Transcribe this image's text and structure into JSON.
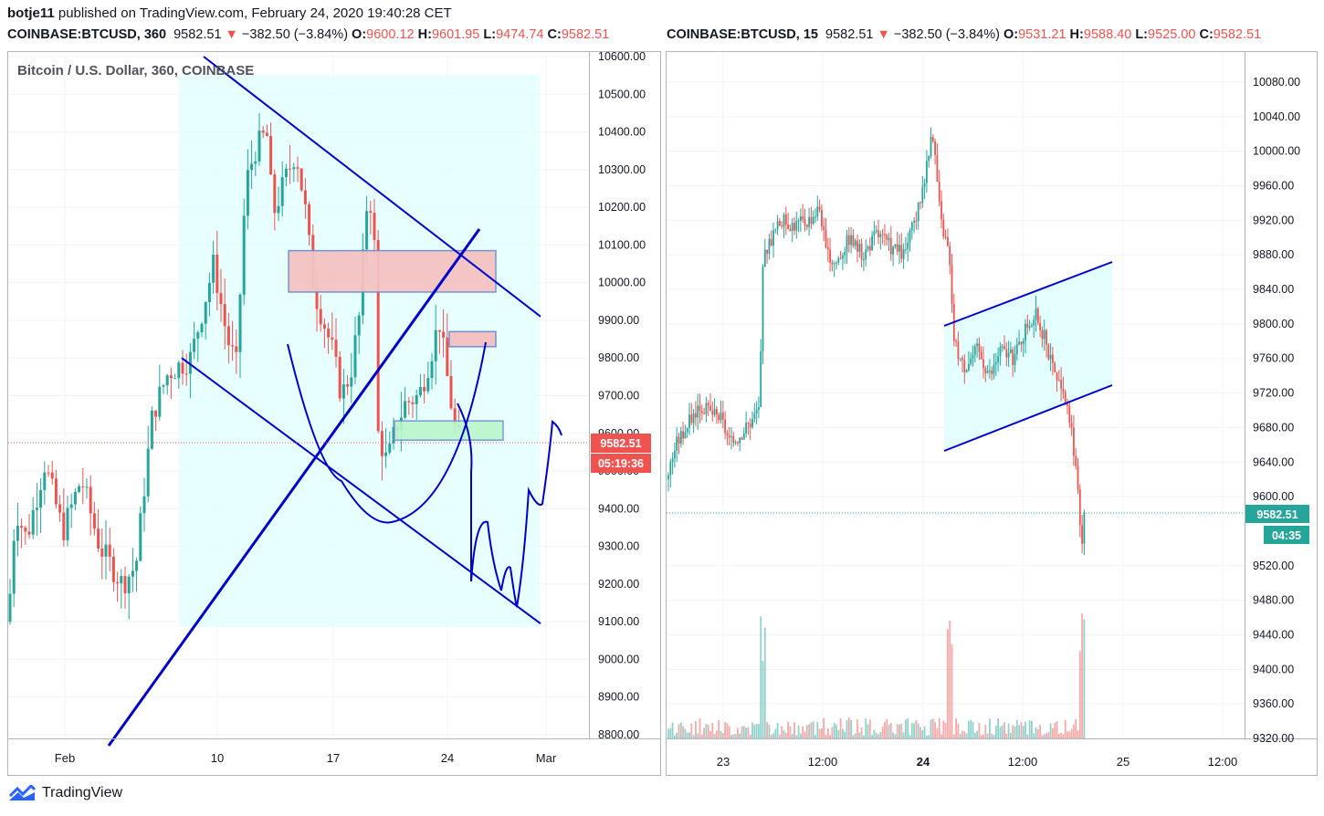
{
  "publish_line": {
    "user": "botje11",
    "rest": "published on TradingView.com, February 24, 2020 19:40:28 CET"
  },
  "left_header": {
    "symbol": "COINBASE:BTCUSD, 360",
    "price": "9582.51",
    "arrow": "▼",
    "change": "−382.50 (−3.84%)",
    "o": "9600.12",
    "h": "9601.95",
    "l": "9474.74",
    "c": "9582.51"
  },
  "right_header": {
    "symbol": "COINBASE:BTCUSD, 15",
    "price": "9582.51",
    "arrow": "▼",
    "change": "−382.50 (−3.84%)",
    "o": "9531.21",
    "h": "9588.40",
    "l": "9525.00",
    "c": "9582.51"
  },
  "left_title": "Bitcoin / U.S. Dollar, 360, COINBASE",
  "footer": {
    "brand": "TradingView"
  },
  "colors": {
    "up": "#26a69a",
    "down": "#ef5350",
    "drawing": "#0000cc",
    "zone": "#e0ffff",
    "resistance_box": "#f4c2c2",
    "support_box": "#b9f6ca"
  },
  "chart_data": [
    {
      "type": "candlestick",
      "symbol": "COINBASE:BTCUSD",
      "interval": "360",
      "ylim": [
        8800,
        10600
      ],
      "y_ticks": [
        "10600.00",
        "10500.00",
        "10400.00",
        "10300.00",
        "10200.00",
        "10100.00",
        "10000.00",
        "9900.00",
        "9800.00",
        "9700.00",
        "9600.00",
        "9500.00",
        "9400.00",
        "9300.00",
        "9200.00",
        "9100.00",
        "9000.00",
        "8900.00",
        "8800.00"
      ],
      "x_ticks": [
        "Feb",
        "10",
        "17",
        "24",
        "Mar"
      ],
      "last_price": "9582.51",
      "countdown": "05:19:36",
      "annotations": {
        "resistance_zone": [
          9975,
          10085
        ],
        "small_resistance_zone": [
          9830,
          9870
        ],
        "support_zone": [
          9582,
          9633
        ],
        "falling_wedge_upper_from": 10600,
        "falling_wedge_upper_to": 9910,
        "falling_wedge_lower_from": 9800,
        "falling_wedge_lower_to": 9095
      }
    },
    {
      "type": "candlestick",
      "symbol": "COINBASE:BTCUSD",
      "interval": "15",
      "ylim": [
        9320,
        10120
      ],
      "y_ticks": [
        "10080.00",
        "10040.00",
        "10000.00",
        "9960.00",
        "9920.00",
        "9880.00",
        "9840.00",
        "9800.00",
        "9760.00",
        "9720.00",
        "9680.00",
        "9640.00",
        "9600.00",
        "9520.00",
        "9480.00",
        "9440.00",
        "9400.00",
        "9360.00",
        "9320.00"
      ],
      "x_ticks": [
        "23",
        "12:00",
        "24",
        "12:00",
        "25",
        "12:00"
      ],
      "last_price": "9582.51",
      "countdown": "04:35",
      "annotations": {
        "rising_channel_upper_from": 9800,
        "rising_channel_upper_to": 9870,
        "rising_channel_lower_from": 9652,
        "rising_channel_lower_to": 9727
      }
    }
  ]
}
